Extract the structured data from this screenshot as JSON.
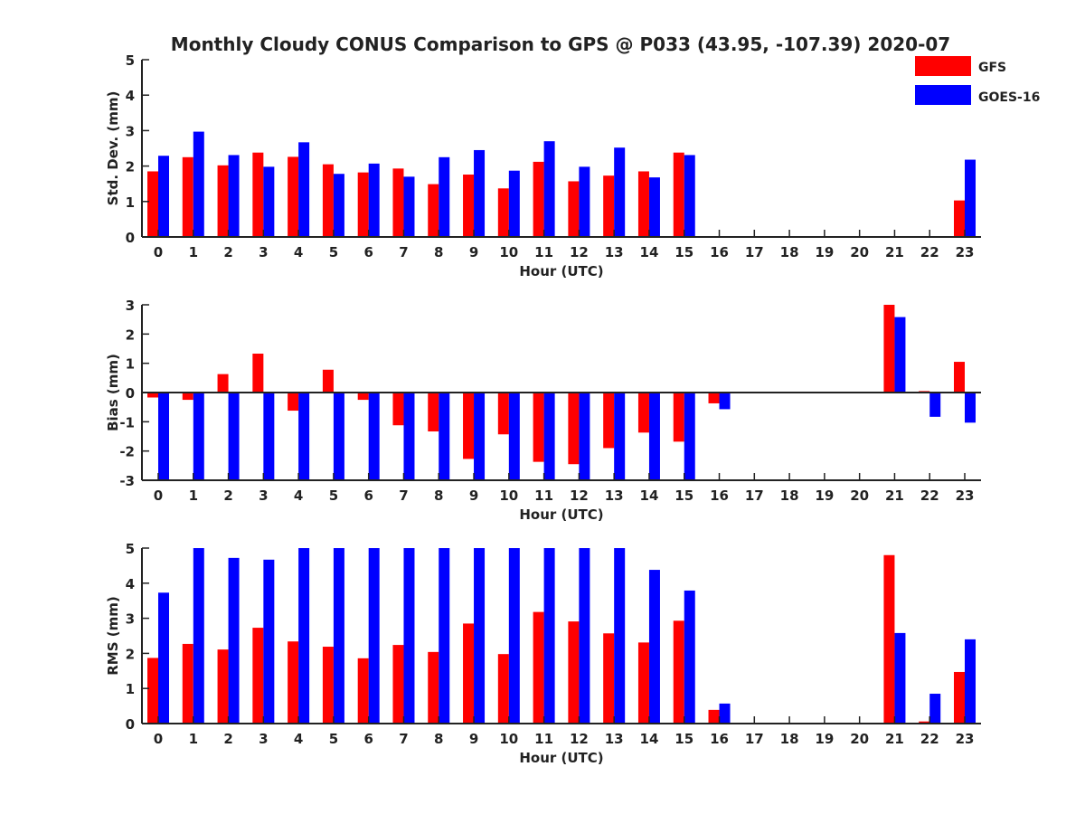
{
  "title": "Monthly Cloudy CONUS Comparison to GPS @ P033 (43.95, -107.39) 2020-07",
  "legend": {
    "placement": "top-right",
    "items": [
      {
        "name": "GFS",
        "color": "#ff0000"
      },
      {
        "name": "GOES-16",
        "color": "#0000ff"
      }
    ]
  },
  "chart_data": [
    {
      "type": "bar",
      "xlabel": "Hour (UTC)",
      "ylabel": "Std. Dev. (mm)",
      "ylim": [
        0,
        5
      ],
      "yticks": [
        "0",
        "1",
        "2",
        "3",
        "4",
        "5"
      ],
      "categories": [
        "0",
        "1",
        "2",
        "3",
        "4",
        "5",
        "6",
        "7",
        "8",
        "9",
        "10",
        "11",
        "12",
        "13",
        "14",
        "15",
        "16",
        "17",
        "18",
        "19",
        "20",
        "21",
        "22",
        "23"
      ],
      "series": [
        {
          "name": "GFS",
          "values": [
            1.85,
            2.25,
            2.02,
            2.38,
            2.26,
            2.05,
            1.82,
            1.93,
            1.49,
            1.76,
            1.37,
            2.12,
            1.57,
            1.73,
            1.85,
            2.38,
            0,
            0,
            0,
            0,
            0,
            0,
            0,
            1.03
          ]
        },
        {
          "name": "GOES-16",
          "values": [
            2.29,
            2.97,
            2.31,
            1.98,
            2.67,
            1.78,
            2.07,
            1.7,
            2.25,
            2.45,
            1.87,
            2.7,
            1.98,
            2.52,
            1.68,
            2.31,
            0,
            0,
            0,
            0,
            0,
            0,
            0,
            2.18
          ]
        }
      ]
    },
    {
      "type": "bar",
      "xlabel": "Hour (UTC)",
      "ylabel": "Bias (mm)",
      "ylim": [
        -3,
        3
      ],
      "yticks": [
        "-3",
        "-2",
        "-1",
        "0",
        "1",
        "2",
        "3"
      ],
      "categories": [
        "0",
        "1",
        "2",
        "3",
        "4",
        "5",
        "6",
        "7",
        "8",
        "9",
        "10",
        "11",
        "12",
        "13",
        "14",
        "15",
        "16",
        "17",
        "18",
        "19",
        "20",
        "21",
        "22",
        "23"
      ],
      "series": [
        {
          "name": "GFS",
          "values": [
            -0.17,
            -0.25,
            0.63,
            1.33,
            -0.62,
            0.78,
            -0.25,
            -1.12,
            -1.33,
            -2.27,
            -1.43,
            -2.37,
            -2.45,
            -1.9,
            -1.37,
            -1.68,
            -0.37,
            0,
            0,
            0,
            0,
            3.0,
            0.05,
            1.05
          ]
        },
        {
          "name": "GOES-16",
          "values": [
            -3.0,
            -3.0,
            -3.0,
            -3.0,
            -3.0,
            -3.0,
            -3.0,
            -3.0,
            -3.0,
            -3.0,
            -3.0,
            -3.0,
            -3.0,
            -3.0,
            -3.0,
            -3.0,
            -0.57,
            0,
            0,
            0,
            0,
            2.58,
            -0.83,
            -1.03
          ]
        }
      ]
    },
    {
      "type": "bar",
      "xlabel": "Hour (UTC)",
      "ylabel": "RMS (mm)",
      "ylim": [
        0,
        5
      ],
      "yticks": [
        "0",
        "1",
        "2",
        "3",
        "4",
        "5"
      ],
      "categories": [
        "0",
        "1",
        "2",
        "3",
        "4",
        "5",
        "6",
        "7",
        "8",
        "9",
        "10",
        "11",
        "12",
        "13",
        "14",
        "15",
        "16",
        "17",
        "18",
        "19",
        "20",
        "21",
        "22",
        "23"
      ],
      "series": [
        {
          "name": "GFS",
          "values": [
            1.87,
            2.27,
            2.11,
            2.73,
            2.34,
            2.19,
            1.86,
            2.24,
            2.04,
            2.85,
            1.98,
            3.18,
            2.91,
            2.57,
            2.31,
            2.93,
            0.39,
            0,
            0,
            0,
            0,
            4.8,
            0.06,
            1.47
          ]
        },
        {
          "name": "GOES-16",
          "values": [
            3.73,
            5.0,
            4.72,
            4.67,
            5.0,
            5.0,
            5.0,
            5.0,
            5.0,
            5.0,
            5.0,
            5.0,
            5.0,
            5.0,
            4.38,
            3.79,
            0.57,
            0,
            0,
            0,
            0,
            2.58,
            0.85,
            2.4
          ]
        }
      ]
    }
  ]
}
